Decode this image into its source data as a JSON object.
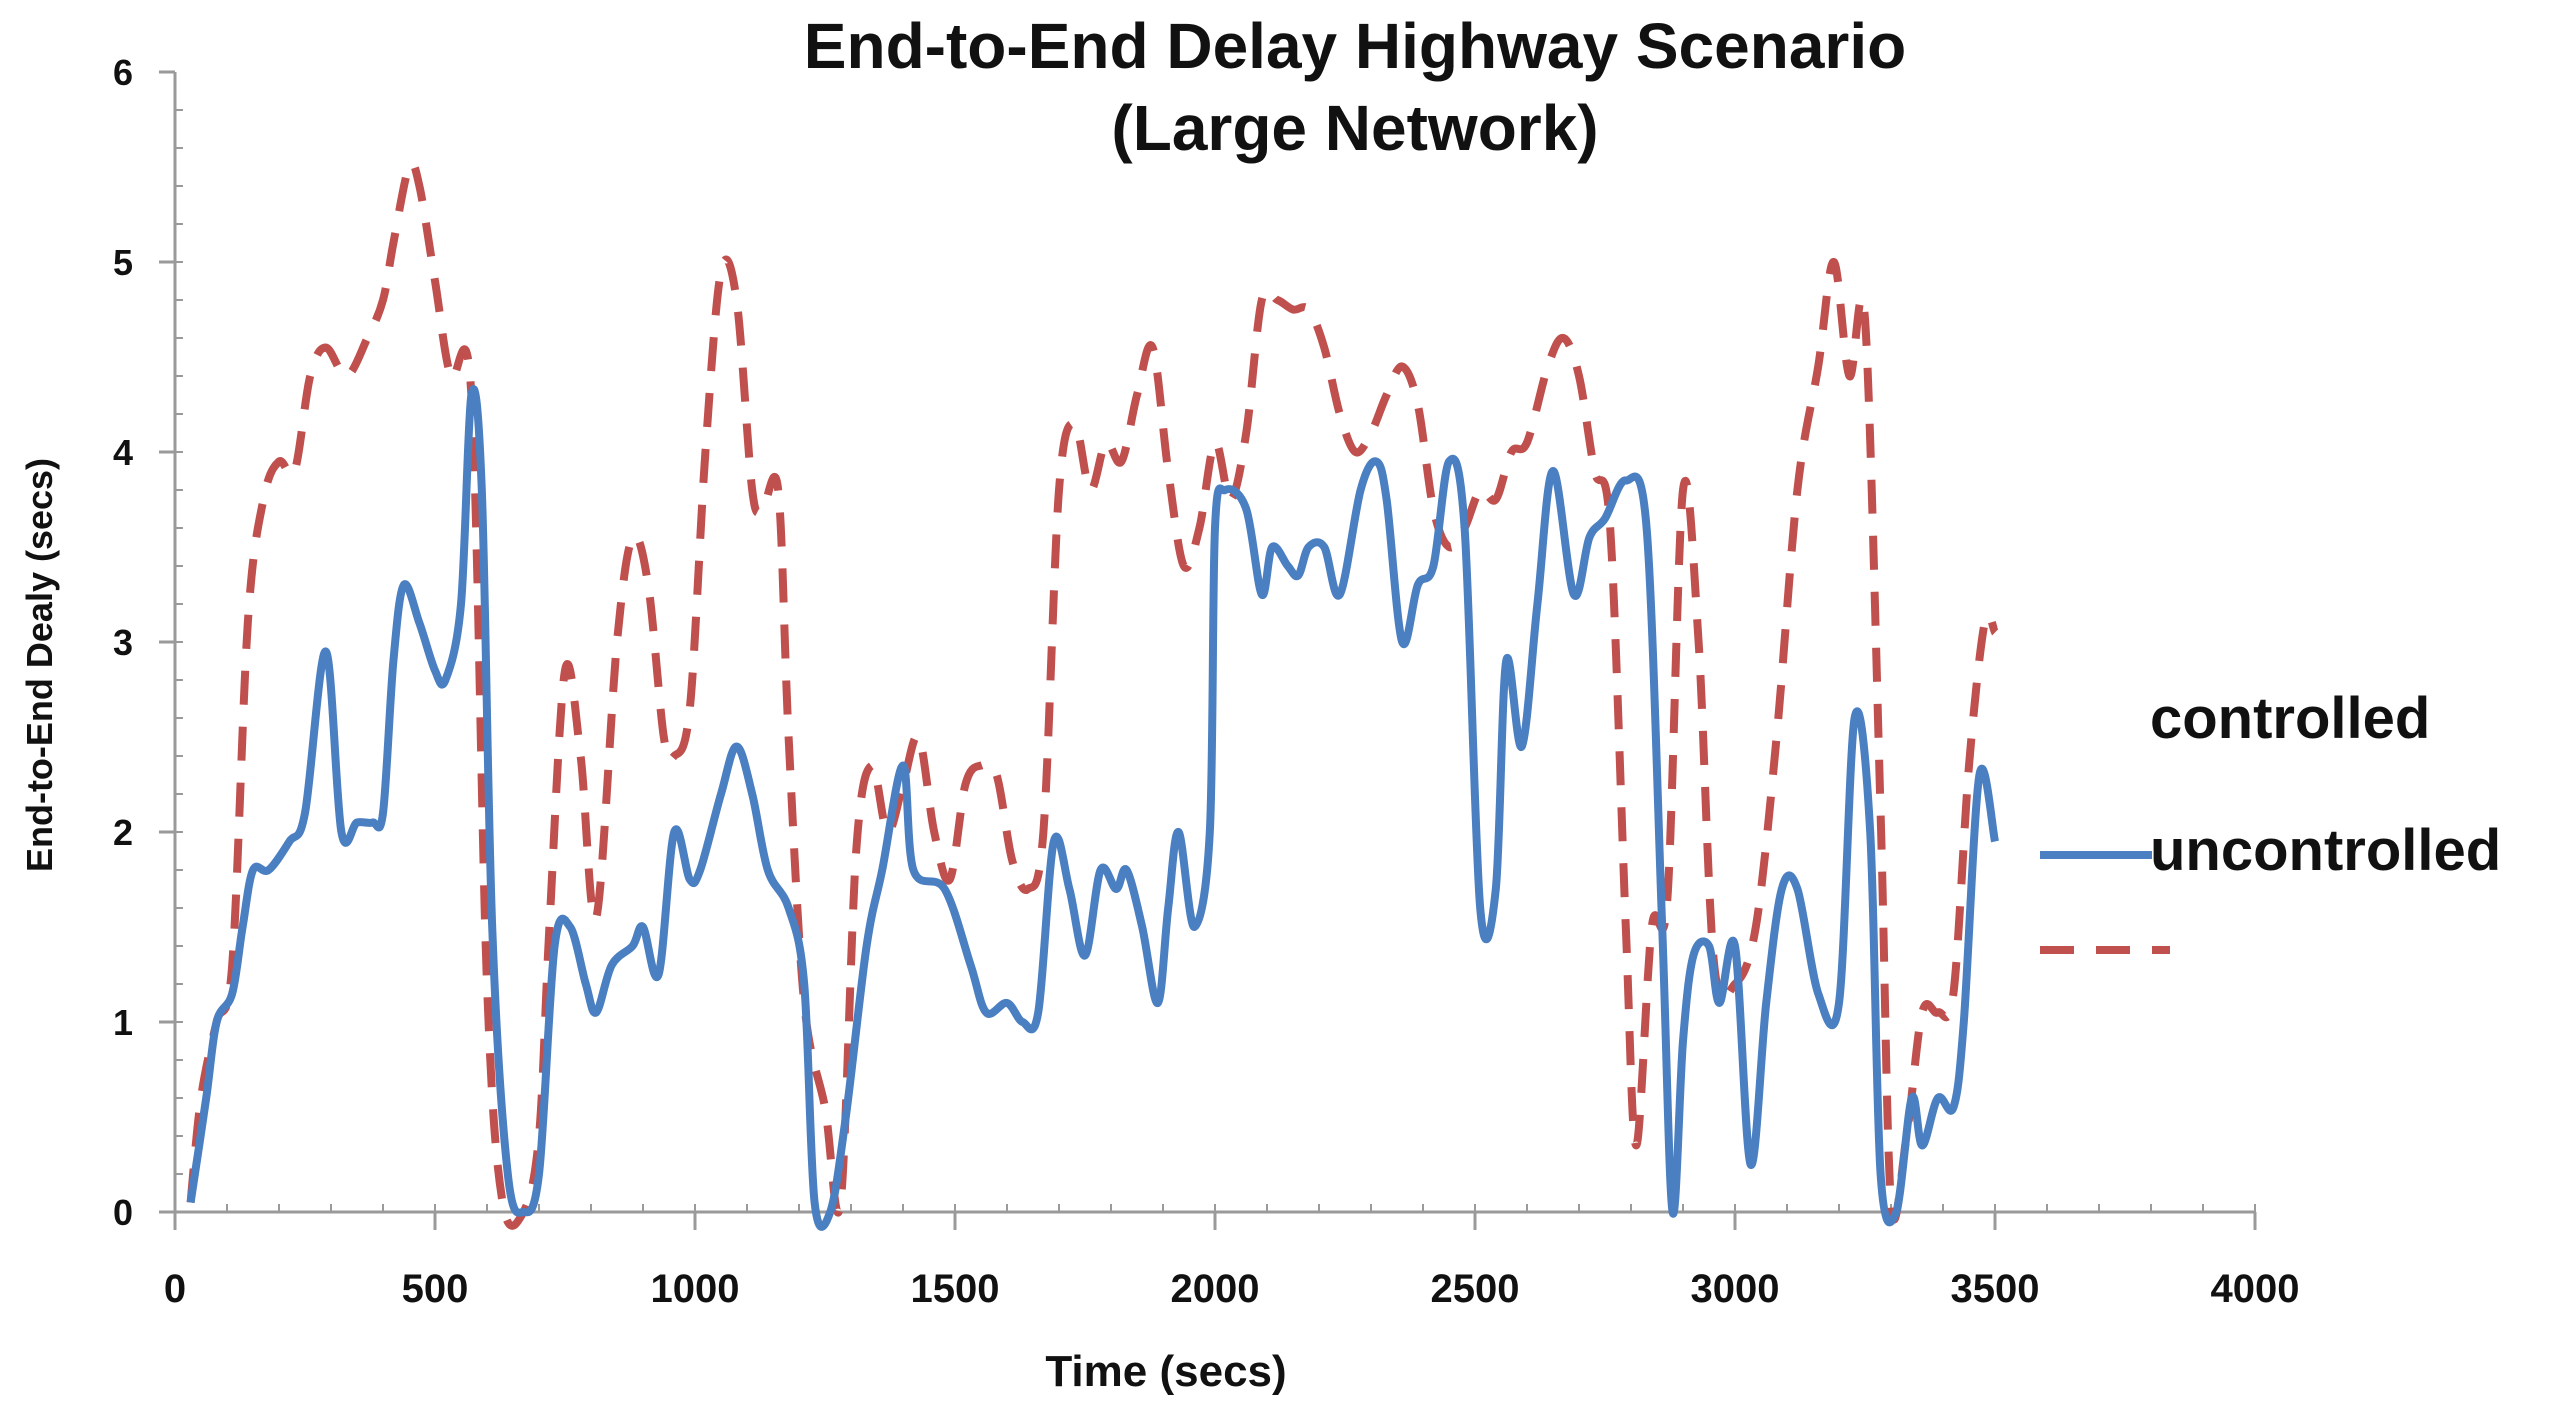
{
  "chart_data": {
    "type": "line",
    "title": "End-to-End Delay Highway Scenario",
    "subtitle": "(Large Network)",
    "xlabel": "Time (secs)",
    "ylabel": "End-to-End Dealy (secs)",
    "xlim": [
      0,
      4000
    ],
    "ylim": [
      0,
      6
    ],
    "x_ticks": [
      "0",
      "500",
      "1000",
      "1500",
      "2000",
      "2500",
      "3000",
      "3500",
      "4000"
    ],
    "y_ticks": [
      "0",
      "1",
      "2",
      "3",
      "4",
      "5",
      "6"
    ],
    "grid": false,
    "legend_position": "right",
    "legend_entries": [
      "controlled",
      "uncontrolled"
    ],
    "colors": {
      "controlled": "#4a7fc1",
      "uncontrolled": "#c0504d"
    },
    "series": [
      {
        "name": "controlled",
        "style": "solid",
        "points": [
          [
            30,
            0.05
          ],
          [
            60,
            0.6
          ],
          [
            80,
            1.0
          ],
          [
            110,
            1.15
          ],
          [
            130,
            1.5
          ],
          [
            150,
            1.8
          ],
          [
            180,
            1.8
          ],
          [
            220,
            1.95
          ],
          [
            250,
            2.1
          ],
          [
            290,
            2.95
          ],
          [
            320,
            2.0
          ],
          [
            350,
            2.05
          ],
          [
            380,
            2.05
          ],
          [
            400,
            2.1
          ],
          [
            420,
            2.9
          ],
          [
            440,
            3.3
          ],
          [
            470,
            3.1
          ],
          [
            500,
            2.85
          ],
          [
            520,
            2.8
          ],
          [
            550,
            3.2
          ],
          [
            570,
            4.3
          ],
          [
            590,
            3.8
          ],
          [
            610,
            1.5
          ],
          [
            640,
            0.2
          ],
          [
            670,
            0.0
          ],
          [
            700,
            0.2
          ],
          [
            730,
            1.4
          ],
          [
            760,
            1.5
          ],
          [
            790,
            1.2
          ],
          [
            810,
            1.05
          ],
          [
            840,
            1.3
          ],
          [
            880,
            1.4
          ],
          [
            900,
            1.5
          ],
          [
            930,
            1.25
          ],
          [
            960,
            2.0
          ],
          [
            990,
            1.75
          ],
          [
            1010,
            1.8
          ],
          [
            1050,
            2.2
          ],
          [
            1080,
            2.45
          ],
          [
            1110,
            2.2
          ],
          [
            1140,
            1.8
          ],
          [
            1180,
            1.6
          ],
          [
            1210,
            1.2
          ],
          [
            1230,
            0.05
          ],
          [
            1260,
            0.0
          ],
          [
            1290,
            0.5
          ],
          [
            1330,
            1.4
          ],
          [
            1360,
            1.8
          ],
          [
            1400,
            2.35
          ],
          [
            1420,
            1.8
          ],
          [
            1480,
            1.7
          ],
          [
            1530,
            1.3
          ],
          [
            1560,
            1.05
          ],
          [
            1600,
            1.1
          ],
          [
            1630,
            1.0
          ],
          [
            1660,
            1.05
          ],
          [
            1690,
            1.95
          ],
          [
            1720,
            1.7
          ],
          [
            1750,
            1.35
          ],
          [
            1780,
            1.8
          ],
          [
            1810,
            1.7
          ],
          [
            1830,
            1.8
          ],
          [
            1860,
            1.5
          ],
          [
            1890,
            1.1
          ],
          [
            1910,
            1.6
          ],
          [
            1930,
            2.0
          ],
          [
            1960,
            1.5
          ],
          [
            1990,
            2.0
          ],
          [
            2000,
            3.6
          ],
          [
            2020,
            3.8
          ],
          [
            2060,
            3.7
          ],
          [
            2090,
            3.25
          ],
          [
            2110,
            3.5
          ],
          [
            2140,
            3.4
          ],
          [
            2160,
            3.35
          ],
          [
            2180,
            3.5
          ],
          [
            2210,
            3.5
          ],
          [
            2240,
            3.25
          ],
          [
            2280,
            3.8
          ],
          [
            2310,
            3.95
          ],
          [
            2330,
            3.75
          ],
          [
            2360,
            3.0
          ],
          [
            2390,
            3.3
          ],
          [
            2420,
            3.4
          ],
          [
            2450,
            3.95
          ],
          [
            2480,
            3.6
          ],
          [
            2510,
            1.6
          ],
          [
            2540,
            1.7
          ],
          [
            2560,
            2.9
          ],
          [
            2590,
            2.45
          ],
          [
            2620,
            3.2
          ],
          [
            2650,
            3.9
          ],
          [
            2690,
            3.25
          ],
          [
            2720,
            3.55
          ],
          [
            2750,
            3.65
          ],
          [
            2790,
            3.85
          ],
          [
            2830,
            3.6
          ],
          [
            2860,
            1.5
          ],
          [
            2880,
            0.0
          ],
          [
            2900,
            0.9
          ],
          [
            2920,
            1.35
          ],
          [
            2950,
            1.4
          ],
          [
            2970,
            1.1
          ],
          [
            3000,
            1.4
          ],
          [
            3030,
            0.25
          ],
          [
            3060,
            1.1
          ],
          [
            3090,
            1.7
          ],
          [
            3120,
            1.7
          ],
          [
            3160,
            1.15
          ],
          [
            3200,
            1.1
          ],
          [
            3230,
            2.6
          ],
          [
            3260,
            2.0
          ],
          [
            3280,
            0.2
          ],
          [
            3310,
            0.0
          ],
          [
            3340,
            0.6
          ],
          [
            3360,
            0.35
          ],
          [
            3390,
            0.6
          ],
          [
            3420,
            0.55
          ],
          [
            3440,
            1.0
          ],
          [
            3470,
            2.3
          ],
          [
            3500,
            1.95
          ]
        ]
      },
      {
        "name": "uncontrolled",
        "style": "dashed",
        "points": [
          [
            30,
            0.05
          ],
          [
            50,
            0.6
          ],
          [
            80,
            1.0
          ],
          [
            110,
            1.3
          ],
          [
            140,
            3.1
          ],
          [
            170,
            3.75
          ],
          [
            200,
            3.95
          ],
          [
            230,
            3.9
          ],
          [
            260,
            4.4
          ],
          [
            290,
            4.55
          ],
          [
            330,
            4.4
          ],
          [
            370,
            4.6
          ],
          [
            400,
            4.8
          ],
          [
            420,
            5.1
          ],
          [
            450,
            5.5
          ],
          [
            470,
            5.4
          ],
          [
            500,
            4.9
          ],
          [
            530,
            4.4
          ],
          [
            570,
            4.3
          ],
          [
            600,
            1.2
          ],
          [
            630,
            0.05
          ],
          [
            670,
            0.0
          ],
          [
            700,
            0.4
          ],
          [
            720,
            1.5
          ],
          [
            750,
            2.85
          ],
          [
            780,
            2.4
          ],
          [
            810,
            1.55
          ],
          [
            850,
            3.0
          ],
          [
            880,
            3.55
          ],
          [
            910,
            3.3
          ],
          [
            940,
            2.5
          ],
          [
            960,
            2.4
          ],
          [
            990,
            2.65
          ],
          [
            1020,
            4.0
          ],
          [
            1050,
            4.95
          ],
          [
            1080,
            4.8
          ],
          [
            1110,
            3.8
          ],
          [
            1130,
            3.7
          ],
          [
            1160,
            3.8
          ],
          [
            1180,
            2.5
          ],
          [
            1210,
            1.1
          ],
          [
            1250,
            0.55
          ],
          [
            1280,
            0.05
          ],
          [
            1310,
            1.9
          ],
          [
            1340,
            2.35
          ],
          [
            1370,
            2.0
          ],
          [
            1400,
            2.25
          ],
          [
            1430,
            2.5
          ],
          [
            1460,
            2.0
          ],
          [
            1490,
            1.75
          ],
          [
            1520,
            2.25
          ],
          [
            1550,
            2.35
          ],
          [
            1580,
            2.3
          ],
          [
            1610,
            1.85
          ],
          [
            1640,
            1.7
          ],
          [
            1670,
            2.0
          ],
          [
            1700,
            3.8
          ],
          [
            1730,
            4.15
          ],
          [
            1760,
            3.8
          ],
          [
            1790,
            4.05
          ],
          [
            1820,
            3.95
          ],
          [
            1850,
            4.3
          ],
          [
            1880,
            4.55
          ],
          [
            1910,
            3.9
          ],
          [
            1940,
            3.4
          ],
          [
            1970,
            3.6
          ],
          [
            2000,
            4.05
          ],
          [
            2030,
            3.75
          ],
          [
            2060,
            4.1
          ],
          [
            2090,
            4.8
          ],
          [
            2120,
            4.8
          ],
          [
            2150,
            4.75
          ],
          [
            2180,
            4.75
          ],
          [
            2210,
            4.55
          ],
          [
            2240,
            4.2
          ],
          [
            2270,
            4.0
          ],
          [
            2300,
            4.1
          ],
          [
            2330,
            4.3
          ],
          [
            2360,
            4.45
          ],
          [
            2390,
            4.25
          ],
          [
            2420,
            3.7
          ],
          [
            2450,
            3.5
          ],
          [
            2480,
            3.6
          ],
          [
            2510,
            3.8
          ],
          [
            2540,
            3.75
          ],
          [
            2570,
            4.0
          ],
          [
            2600,
            4.05
          ],
          [
            2640,
            4.45
          ],
          [
            2670,
            4.6
          ],
          [
            2700,
            4.4
          ],
          [
            2730,
            3.9
          ],
          [
            2760,
            3.6
          ],
          [
            2790,
            1.5
          ],
          [
            2810,
            0.35
          ],
          [
            2840,
            1.5
          ],
          [
            2870,
            1.65
          ],
          [
            2900,
            3.8
          ],
          [
            2930,
            3.0
          ],
          [
            2960,
            1.3
          ],
          [
            3000,
            1.2
          ],
          [
            3040,
            1.5
          ],
          [
            3080,
            2.5
          ],
          [
            3120,
            3.8
          ],
          [
            3160,
            4.45
          ],
          [
            3190,
            5.0
          ],
          [
            3220,
            4.4
          ],
          [
            3250,
            4.7
          ],
          [
            3280,
            2.1
          ],
          [
            3300,
            0.05
          ],
          [
            3330,
            0.4
          ],
          [
            3360,
            1.05
          ],
          [
            3390,
            1.05
          ],
          [
            3420,
            1.15
          ],
          [
            3450,
            2.35
          ],
          [
            3480,
            3.1
          ],
          [
            3500,
            3.05
          ]
        ]
      }
    ]
  }
}
